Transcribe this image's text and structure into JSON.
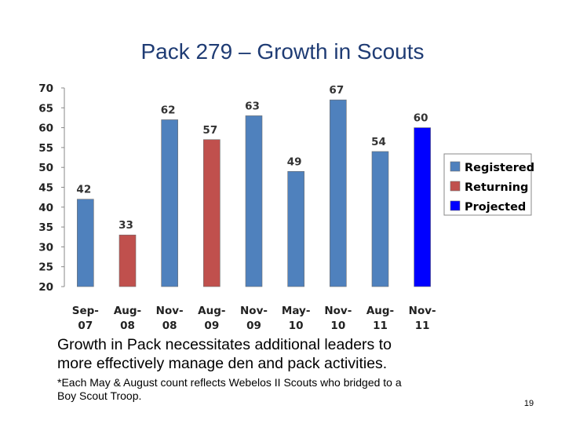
{
  "slide": {
    "title": "Pack 279 – Growth in Scouts",
    "body_text_1": "Growth in Pack necessitates additional leaders to",
    "body_text_2": "more effectively manage den and pack activities.",
    "footnote_1": "*Each May & August count reflects Webelos II Scouts who bridged to a",
    "footnote_2": "Boy Scout Troop.",
    "page_number": "19"
  },
  "chart_data": {
    "type": "bar",
    "categories": [
      [
        "Sep-",
        "07"
      ],
      [
        "Aug-",
        "08"
      ],
      [
        "Nov-",
        "08"
      ],
      [
        "Aug-",
        "09"
      ],
      [
        "Nov-",
        "09"
      ],
      [
        "May-",
        "10"
      ],
      [
        "Nov-",
        "10"
      ],
      [
        "Aug-",
        "11"
      ],
      [
        "Nov-",
        "11"
      ]
    ],
    "values": [
      42,
      33,
      62,
      57,
      63,
      49,
      67,
      54,
      60
    ],
    "series_of_bar": [
      "Registered",
      "Returning",
      "Registered",
      "Returning",
      "Registered",
      "Registered",
      "Registered",
      "Registered",
      "Projected"
    ],
    "series": [
      {
        "name": "Registered",
        "color": "#4f81bd"
      },
      {
        "name": "Returning",
        "color": "#c0504d"
      },
      {
        "name": "Projected",
        "color": "#0000ff"
      }
    ],
    "ylim": [
      20,
      70
    ],
    "yticks": [
      "70",
      "65",
      "60",
      "55",
      "50",
      "45",
      "40",
      "35",
      "30",
      "25",
      "20"
    ],
    "grid": false,
    "legend_position": "right"
  }
}
